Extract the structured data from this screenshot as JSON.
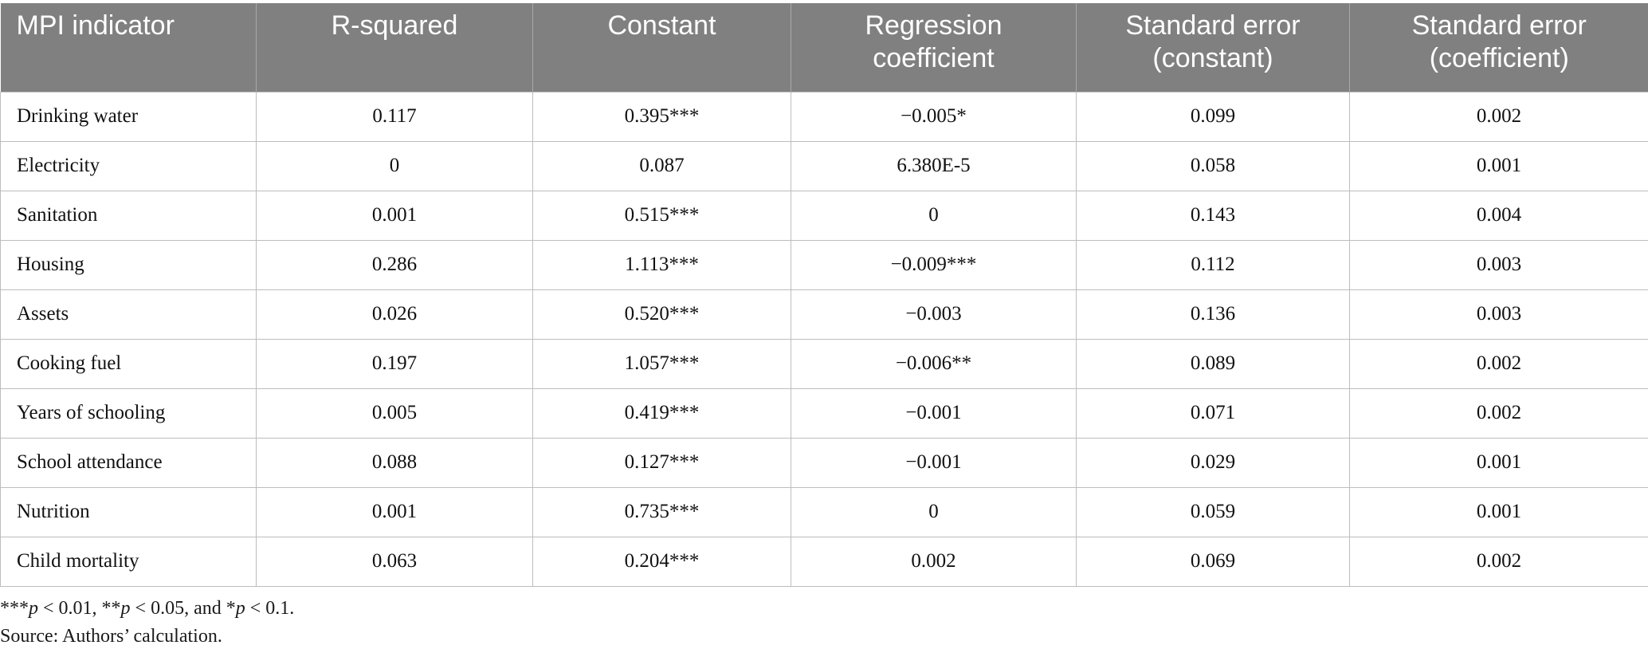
{
  "table": {
    "headers": [
      "MPI indicator",
      "R-squared",
      "Constant",
      "Regression coefficient",
      "Standard error (constant)",
      "Standard error (coefficient)"
    ],
    "rows": [
      [
        "Drinking water",
        "0.117",
        "0.395***",
        "−0.005*",
        "0.099",
        "0.002"
      ],
      [
        "Electricity",
        "0",
        "0.087",
        "6.380E-5",
        "0.058",
        "0.001"
      ],
      [
        "Sanitation",
        "0.001",
        "0.515***",
        "0",
        "0.143",
        "0.004"
      ],
      [
        "Housing",
        "0.286",
        "1.113***",
        "−0.009***",
        "0.112",
        "0.003"
      ],
      [
        "Assets",
        "0.026",
        "0.520***",
        "−0.003",
        "0.136",
        "0.003"
      ],
      [
        "Cooking fuel",
        "0.197",
        "1.057***",
        "−0.006**",
        "0.089",
        "0.002"
      ],
      [
        "Years of schooling",
        "0.005",
        "0.419***",
        "−0.001",
        "0.071",
        "0.002"
      ],
      [
        "School attendance",
        "0.088",
        "0.127***",
        "−0.001",
        "0.029",
        "0.001"
      ],
      [
        "Nutrition",
        "0.001",
        "0.735***",
        "0",
        "0.059",
        "0.001"
      ],
      [
        "Child mortality",
        "0.063",
        "0.204***",
        "0.002",
        "0.069",
        "0.002"
      ]
    ]
  },
  "footnotes": {
    "significance": {
      "a_stars": "***",
      "a_p": "p",
      "a_rest": " < 0.01, ",
      "b_stars": "**",
      "b_p": "p",
      "b_rest": " < 0.05, and ",
      "c_stars": "*",
      "c_p": "p",
      "c_rest": " < 0.1."
    },
    "source": "Source: Authors’ calculation."
  }
}
